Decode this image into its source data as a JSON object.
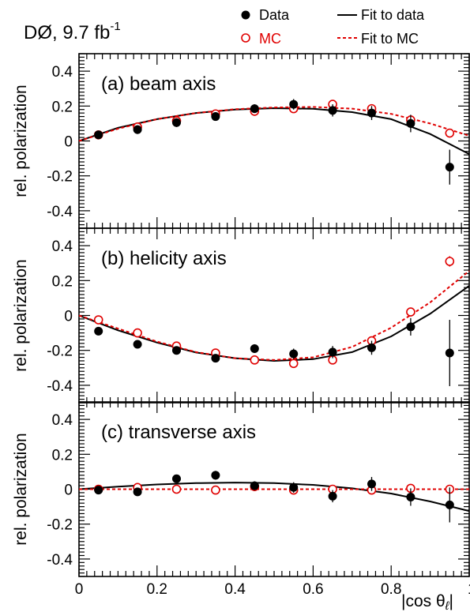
{
  "chart_data": {
    "type": "scatter",
    "experiment_label": "DØ, 9.7 fb",
    "experiment_label_sup": "-1",
    "xlabel": "|cos θ",
    "xlabel_sub": "ℓ",
    "xlabel_close": "|",
    "ylabel": "rel. polarization",
    "xlim": [
      0,
      1
    ],
    "ylim": [
      -0.5,
      0.5
    ],
    "x_ticks": [
      0,
      0.2,
      0.4,
      0.6,
      0.8
    ],
    "x_tick_labels": [
      "0",
      "0.2",
      "0.4",
      "0.6",
      "0.8"
    ],
    "x_edge_label": "1",
    "y_ticks": [
      -0.4,
      -0.2,
      0,
      0.2,
      0.4
    ],
    "y_tick_labels": [
      "-0.4",
      "-0.2",
      "0",
      "0.2",
      "0.4"
    ],
    "legend": {
      "data": "Data",
      "mc": "MC",
      "fit_data": "Fit to data",
      "fit_mc": "Fit to MC"
    },
    "colors": {
      "data": "#000000",
      "mc": "#e00000"
    },
    "x": [
      0.05,
      0.15,
      0.25,
      0.35,
      0.45,
      0.55,
      0.65,
      0.75,
      0.85,
      0.95
    ],
    "panels": [
      {
        "label": "(a) beam axis",
        "data": [
          0.035,
          0.065,
          0.105,
          0.14,
          0.185,
          0.21,
          0.175,
          0.16,
          0.1,
          -0.15
        ],
        "data_err": [
          0.02,
          0.025,
          0.025,
          0.025,
          0.025,
          0.03,
          0.035,
          0.04,
          0.05,
          0.1
        ],
        "mc": [
          0.035,
          0.08,
          0.115,
          0.155,
          0.17,
          0.185,
          0.21,
          0.185,
          0.12,
          0.045
        ],
        "mc_err": [
          0.01,
          0.01,
          0.01,
          0.01,
          0.01,
          0.01,
          0.012,
          0.015,
          0.018,
          0.02
        ],
        "fit_data": [
          [
            0,
            0
          ],
          [
            0.1,
            0.075
          ],
          [
            0.2,
            0.125
          ],
          [
            0.3,
            0.16
          ],
          [
            0.4,
            0.18
          ],
          [
            0.5,
            0.188
          ],
          [
            0.6,
            0.184
          ],
          [
            0.7,
            0.165
          ],
          [
            0.8,
            0.125
          ],
          [
            0.9,
            0.04
          ],
          [
            1.0,
            -0.075
          ]
        ],
        "fit_mc": [
          [
            0,
            0
          ],
          [
            0.1,
            0.07
          ],
          [
            0.2,
            0.125
          ],
          [
            0.3,
            0.16
          ],
          [
            0.4,
            0.182
          ],
          [
            0.5,
            0.192
          ],
          [
            0.6,
            0.195
          ],
          [
            0.7,
            0.185
          ],
          [
            0.8,
            0.155
          ],
          [
            0.9,
            0.1
          ],
          [
            1.0,
            0.03
          ]
        ]
      },
      {
        "label": "(b) helicity axis",
        "data": [
          -0.09,
          -0.165,
          -0.2,
          -0.245,
          -0.19,
          -0.22,
          -0.21,
          -0.185,
          -0.065,
          -0.215
        ],
        "data_err": [
          0.02,
          0.02,
          0.02,
          0.02,
          0.025,
          0.03,
          0.035,
          0.04,
          0.05,
          0.19
        ],
        "mc": [
          -0.025,
          -0.1,
          -0.175,
          -0.215,
          -0.255,
          -0.275,
          -0.255,
          -0.145,
          0.02,
          0.31
        ],
        "mc_err": [
          0.01,
          0.01,
          0.01,
          0.01,
          0.01,
          0.012,
          0.012,
          0.015,
          0.02,
          0.03
        ],
        "fit_data": [
          [
            0,
            0
          ],
          [
            0.1,
            -0.085
          ],
          [
            0.2,
            -0.155
          ],
          [
            0.3,
            -0.212
          ],
          [
            0.4,
            -0.245
          ],
          [
            0.5,
            -0.26
          ],
          [
            0.6,
            -0.25
          ],
          [
            0.7,
            -0.21
          ],
          [
            0.8,
            -0.12
          ],
          [
            0.9,
            0.01
          ],
          [
            1.0,
            0.17
          ]
        ],
        "fit_mc": [
          [
            0,
            0
          ],
          [
            0.1,
            -0.075
          ],
          [
            0.2,
            -0.15
          ],
          [
            0.3,
            -0.21
          ],
          [
            0.4,
            -0.245
          ],
          [
            0.5,
            -0.255
          ],
          [
            0.6,
            -0.24
          ],
          [
            0.7,
            -0.18
          ],
          [
            0.8,
            -0.07
          ],
          [
            0.9,
            0.075
          ],
          [
            1.0,
            0.255
          ]
        ]
      },
      {
        "label": "(c) transverse axis",
        "data": [
          -0.005,
          -0.015,
          0.06,
          0.08,
          0.02,
          0.01,
          -0.04,
          0.03,
          -0.045,
          -0.09
        ],
        "data_err": [
          0.015,
          0.02,
          0.02,
          0.025,
          0.025,
          0.03,
          0.035,
          0.04,
          0.05,
          0.1
        ],
        "mc": [
          0.0,
          0.01,
          0.0,
          -0.005,
          0.015,
          -0.005,
          0.0,
          -0.005,
          0.005,
          0.0
        ],
        "mc_err": [
          0.008,
          0.008,
          0.008,
          0.008,
          0.008,
          0.008,
          0.008,
          0.008,
          0.01,
          0.01
        ],
        "fit_data": [
          [
            0,
            0
          ],
          [
            0.1,
            0.015
          ],
          [
            0.2,
            0.027
          ],
          [
            0.3,
            0.035
          ],
          [
            0.4,
            0.038
          ],
          [
            0.5,
            0.035
          ],
          [
            0.6,
            0.025
          ],
          [
            0.7,
            0.005
          ],
          [
            0.8,
            -0.025
          ],
          [
            0.9,
            -0.07
          ],
          [
            1.0,
            -0.125
          ]
        ],
        "fit_mc": [
          [
            0,
            0
          ],
          [
            1.0,
            0
          ]
        ]
      }
    ]
  }
}
